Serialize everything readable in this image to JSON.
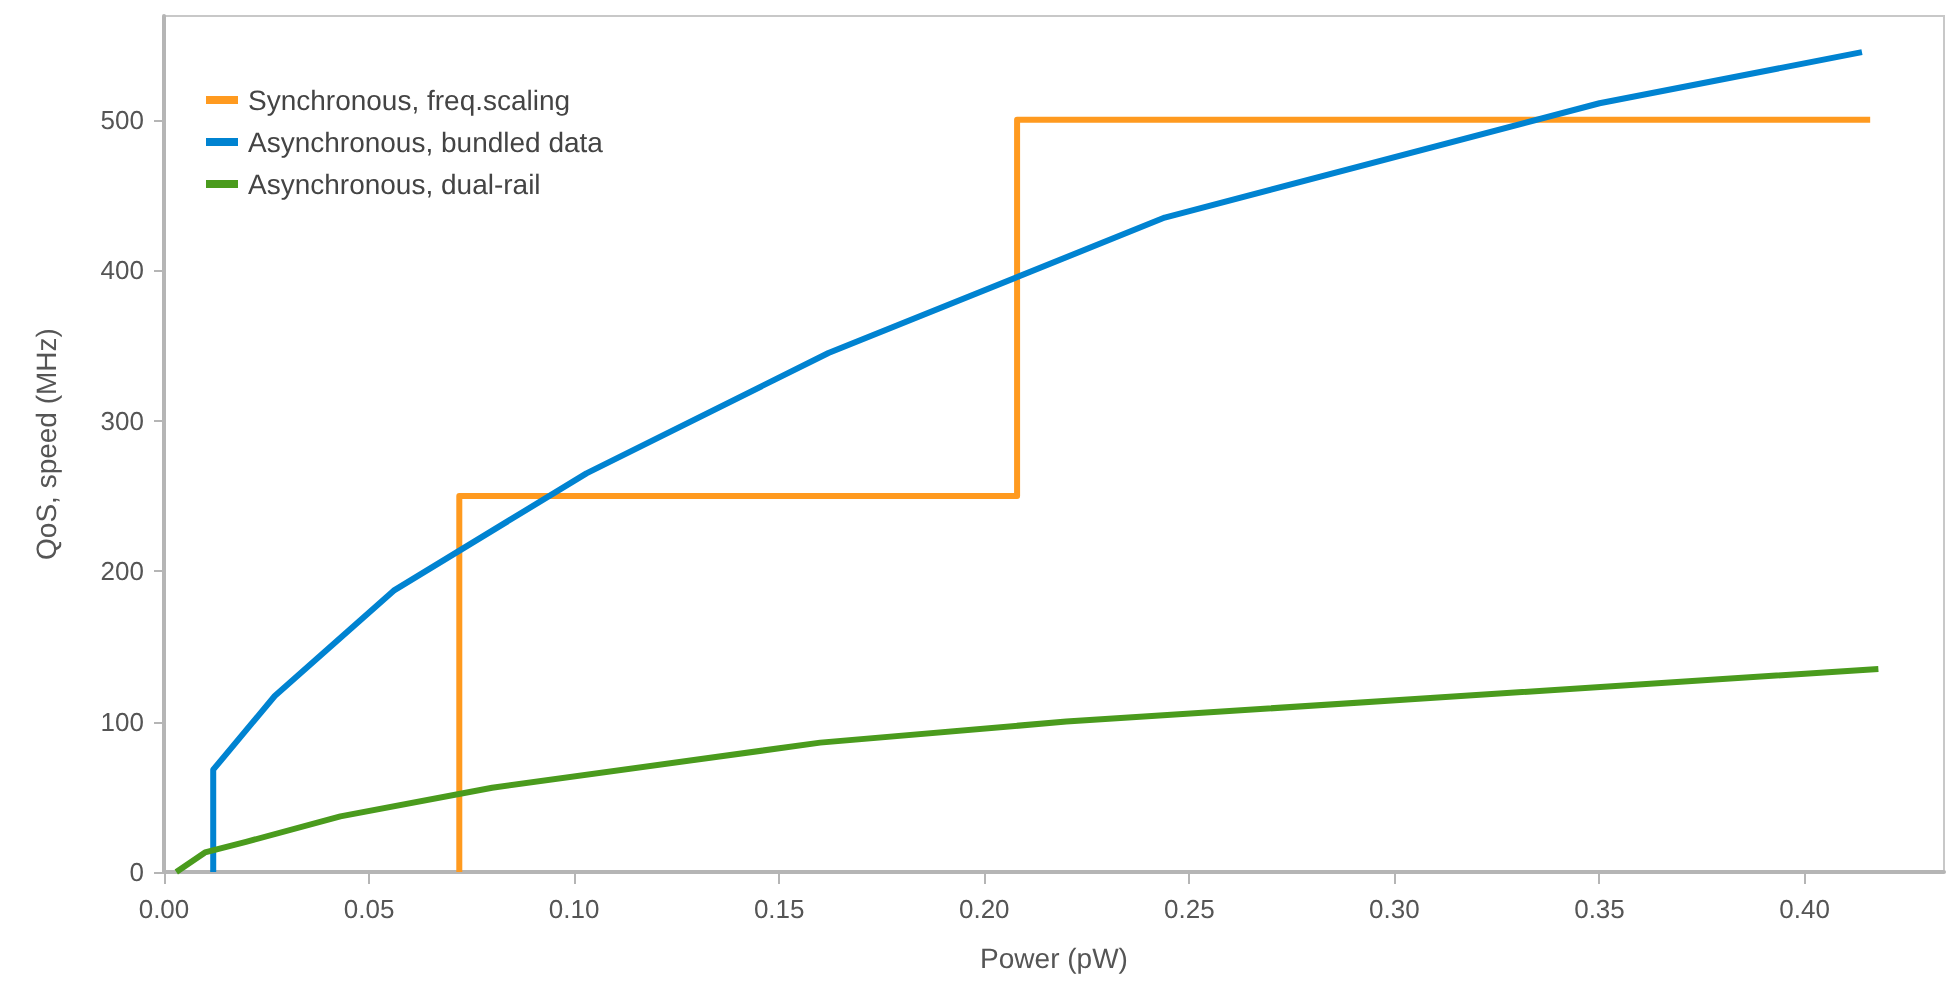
{
  "chart_data": {
    "type": "line",
    "xlabel": "Power (pW)",
    "ylabel": "QoS, speed (MHz)",
    "xlim": [
      0,
      0.434
    ],
    "xticks": [
      {
        "value": 0,
        "label": "0.00"
      },
      0.05,
      {
        "value": 0.1,
        "label": "0.10"
      },
      0.15,
      {
        "value": 0.2,
        "label": "0.20"
      },
      0.25,
      {
        "value": 0.3,
        "label": "0.30"
      },
      0.35,
      {
        "value": 0.4,
        "label": "0.40"
      }
    ],
    "ylim": [
      0,
      569
    ],
    "yticks": [
      0,
      100,
      200,
      300,
      400,
      500
    ],
    "grid": false,
    "legend": "top left",
    "marker": "none",
    "line_style": "solid",
    "series": [
      {
        "name": "Synchronous, freq.scaling",
        "color": "#ff9a1f",
        "x": [
          0.072,
          0.072,
          0.208,
          0.208,
          0.416
        ],
        "values": [
          0,
          250,
          250,
          500,
          500
        ]
      },
      {
        "name": "Asynchronous, bundled data",
        "color": "#0083d1",
        "x": [
          0.012,
          0.012,
          0.027,
          0.056,
          0.103,
          0.162,
          0.244,
          0.35,
          0.414
        ],
        "values": [
          0,
          68,
          117,
          187,
          265,
          345,
          435,
          511,
          545
        ]
      },
      {
        "name": "Asynchronous, dual-rail",
        "color": "#4a9b1d",
        "x": [
          0.003,
          0.01,
          0.02,
          0.043,
          0.08,
          0.16,
          0.22,
          0.305,
          0.418
        ],
        "values": [
          0,
          13,
          20,
          37,
          56,
          86,
          100,
          115,
          135
        ]
      }
    ]
  }
}
